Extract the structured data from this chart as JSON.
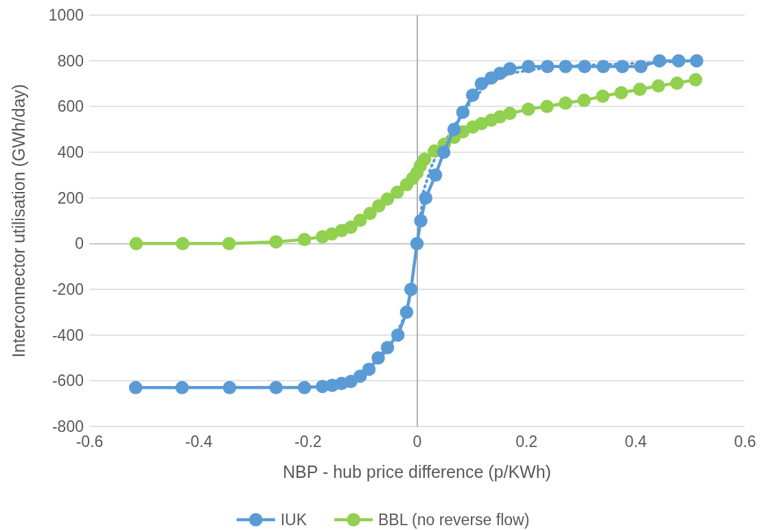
{
  "chart_data": {
    "type": "line",
    "xlabel": "NBP - hub price difference (p/KWh)",
    "ylabel": "Interconnector utilisation (GWh/day)",
    "xlim": [
      -0.6,
      0.6
    ],
    "xticks": [
      -0.6,
      -0.4,
      -0.2,
      0,
      0.2,
      0.4,
      0.6
    ],
    "ylim": [
      -800,
      1000
    ],
    "yticks": [
      -800,
      -600,
      -400,
      -200,
      0,
      200,
      400,
      600,
      800,
      1000
    ],
    "grid": "y",
    "legend": "bottom",
    "marker": "circle",
    "line_style": "solid",
    "series": [
      {
        "name": "IUK",
        "color": "#5b9bd5",
        "x": [
          -0.515,
          -0.43,
          -0.343,
          -0.258,
          -0.206,
          -0.173,
          -0.155,
          -0.138,
          -0.121,
          -0.104,
          -0.088,
          -0.071,
          -0.054,
          -0.035,
          -0.019,
          -0.011,
          0,
          0.007,
          0.016,
          0.034,
          0.049,
          0.068,
          0.084,
          0.102,
          0.118,
          0.136,
          0.152,
          0.17,
          0.204,
          0.239,
          0.272,
          0.307,
          0.341,
          0.376,
          0.41,
          0.444,
          0.479,
          0.512
        ],
        "values": [
          -630,
          -630,
          -630,
          -630,
          -630,
          -625,
          -620,
          -612,
          -603,
          -580,
          -550,
          -500,
          -455,
          -400,
          -300,
          -200,
          0,
          100,
          200,
          300,
          400,
          500,
          575,
          650,
          700,
          725,
          745,
          765,
          775,
          775,
          775,
          775,
          775,
          775,
          775,
          800,
          800,
          800
        ]
      },
      {
        "name": "BBL (no reverse flow)",
        "color": "#92d050",
        "x": [
          -0.514,
          -0.429,
          -0.344,
          -0.258,
          -0.206,
          -0.173,
          -0.156,
          -0.138,
          -0.121,
          -0.104,
          -0.086,
          -0.07,
          -0.054,
          -0.036,
          -0.019,
          -0.008,
          0,
          0.006,
          0.014,
          0.032,
          0.05,
          0.068,
          0.084,
          0.102,
          0.118,
          0.136,
          0.152,
          0.17,
          0.204,
          0.238,
          0.272,
          0.306,
          0.34,
          0.374,
          0.408,
          0.442,
          0.476,
          0.51
        ],
        "values": [
          0,
          0,
          0,
          8,
          18,
          30,
          42,
          57,
          72,
          102,
          132,
          165,
          195,
          225,
          258,
          285,
          310,
          340,
          369,
          405,
          435,
          465,
          489,
          510,
          525,
          540,
          555,
          570,
          588,
          600,
          615,
          627,
          645,
          660,
          675,
          690,
          702,
          717
        ]
      },
      {
        "type": "line",
        "marker": "none",
        "line_style": "dotted",
        "color": "#5b9bd5",
        "x": [
          -0.515,
          -0.2,
          -0.15,
          -0.12,
          -0.09,
          -0.06,
          -0.04,
          -0.025,
          -0.012,
          0,
          0.012,
          0.025,
          0.04,
          0.06,
          0.08,
          0.1,
          0.13,
          0.17,
          0.25,
          0.51
        ],
        "values": [
          -630,
          -628,
          -620,
          -605,
          -560,
          -480,
          -410,
          -330,
          -230,
          0,
          230,
          330,
          410,
          480,
          560,
          625,
          700,
          745,
          775,
          800
        ]
      }
    ]
  }
}
